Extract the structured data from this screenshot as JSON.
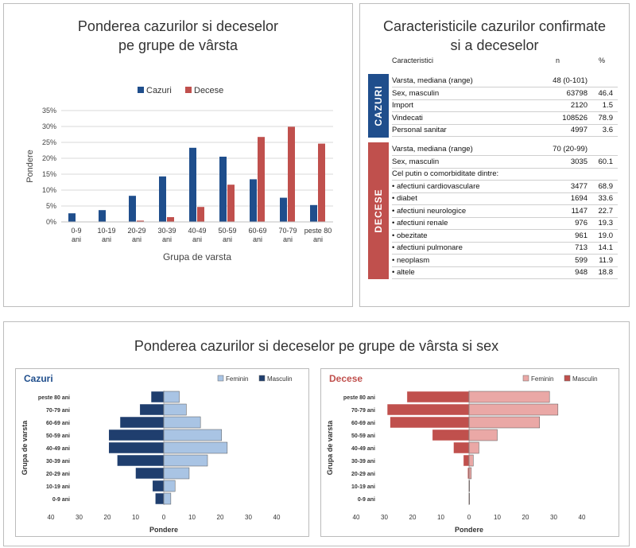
{
  "panel1": {
    "title_line1": "Ponderea cazurilor si deceselor",
    "title_line2": "pe grupe de vârsta"
  },
  "panel2": {
    "title_line1": "Caracteristicile cazurilor confirmate",
    "title_line2": "si a deceselor",
    "headers": {
      "label": "Caracteristici",
      "n": "n",
      "pct": "%"
    },
    "cazuri_label": "CAZURI",
    "decese_label": "DECESE",
    "cazuri_rows": [
      {
        "label": "Varsta, mediana (range)",
        "n": "48 (0-101)",
        "pct": ""
      },
      {
        "label": "Sex, masculin",
        "n": "63798",
        "pct": "46.4"
      },
      {
        "label": "Import",
        "n": "2120",
        "pct": "1.5"
      },
      {
        "label": "Vindecati",
        "n": "108526",
        "pct": "78.9"
      },
      {
        "label": "Personal sanitar",
        "n": "4997",
        "pct": "3.6"
      }
    ],
    "decese_rows": [
      {
        "label": "Varsta, mediana (range)",
        "n": "70 (20-99)",
        "pct": ""
      },
      {
        "label": "Sex, masculin",
        "n": "3035",
        "pct": "60.1"
      },
      {
        "label": "Cel putin o comorbiditate dintre:",
        "n": "",
        "pct": ""
      },
      {
        "label": "• afectiuni cardiovasculare",
        "n": "3477",
        "pct": "68.9"
      },
      {
        "label": "• diabet",
        "n": "1694",
        "pct": "33.6"
      },
      {
        "label": "• afectiuni neurologice",
        "n": "1147",
        "pct": "22.7"
      },
      {
        "label": "• afectiuni renale",
        "n": "976",
        "pct": "19.3"
      },
      {
        "label": "• obezitate",
        "n": "961",
        "pct": "19.0"
      },
      {
        "label": "• afectiuni pulmonare",
        "n": "713",
        "pct": "14.1"
      },
      {
        "label": "• neoplasm",
        "n": "599",
        "pct": "11.9"
      },
      {
        "label": "• altele",
        "n": "948",
        "pct": "18.8"
      }
    ]
  },
  "panel3": {
    "title": "Ponderea cazurilor si deceselor pe grupe de vârsta si sex"
  },
  "chart_data": [
    {
      "type": "bar",
      "title": "Ponderea cazurilor si deceselor pe grupe de vârsta",
      "xlabel": "Grupa de varsta",
      "ylabel": "Pondere",
      "ylim": [
        0,
        35
      ],
      "yticks": [
        "0%",
        "5%",
        "10%",
        "15%",
        "20%",
        "25%",
        "30%",
        "35%"
      ],
      "legend": "top",
      "grid": true,
      "categories": [
        "0-9 ani",
        "10-19 ani",
        "20-29 ani",
        "30-39 ani",
        "40-49 ani",
        "50-59 ani",
        "60-69 ani",
        "70-79 ani",
        "peste 80 ani"
      ],
      "series": [
        {
          "name": "Cazuri",
          "color": "#1f4e8c",
          "values": [
            2.7,
            3.7,
            8.2,
            14.3,
            23.3,
            20.5,
            13.4,
            7.6,
            5.3
          ]
        },
        {
          "name": "Decese",
          "color": "#c0504d",
          "values": [
            0,
            0,
            0.4,
            1.5,
            4.7,
            11.7,
            26.7,
            29.9,
            24.6
          ]
        }
      ]
    },
    {
      "type": "bar",
      "title": "Cazuri",
      "title_color": "#1f4e8c",
      "xlabel": "Pondere",
      "ylabel": "Grupa de varsta",
      "xticks": [
        "40",
        "30",
        "20",
        "10",
        "0",
        "10",
        "20",
        "30",
        "40"
      ],
      "xlim": [
        -40,
        40
      ],
      "legend": "top-right",
      "categories": [
        "0-9 ani",
        "10-19 ani",
        "20-29 ani",
        "30-39 ani",
        "40-49 ani",
        "50-59 ani",
        "60-69 ani",
        "70-79 ani",
        "peste 80 ani"
      ],
      "series": [
        {
          "name": "Feminin",
          "color": "#a9c4e4",
          "values": [
            2.5,
            4,
            9,
            15.5,
            22.5,
            20.5,
            13,
            8,
            5.5
          ]
        },
        {
          "name": "Masculin",
          "color": "#1f3e6e",
          "values": [
            3,
            4,
            10,
            16.5,
            19.5,
            19.5,
            15.5,
            8.5,
            4.5
          ]
        }
      ]
    },
    {
      "type": "bar",
      "title": "Decese",
      "title_color": "#c0504d",
      "xlabel": "Pondere",
      "ylabel": "Grupa de varsta",
      "xticks": [
        "40",
        "30",
        "20",
        "10",
        "0",
        "10",
        "20",
        "30",
        "40"
      ],
      "xlim": [
        -40,
        40
      ],
      "legend": "top-right",
      "categories": [
        "0-9 ani",
        "10-19 ani",
        "20-29 ani",
        "30-39 ani",
        "40-49 ani",
        "50-59 ani",
        "60-69 ani",
        "70-79 ani",
        "peste 80 ani"
      ],
      "series": [
        {
          "name": "Feminin",
          "color": "#eaa8a6",
          "values": [
            0.2,
            0.2,
            0.8,
            1.5,
            3.5,
            10,
            25,
            31.5,
            28.5
          ]
        },
        {
          "name": "Masculin",
          "color": "#c0504d",
          "values": [
            0.2,
            0.2,
            0.5,
            2,
            5.5,
            13,
            28,
            29,
            22
          ]
        }
      ]
    }
  ]
}
